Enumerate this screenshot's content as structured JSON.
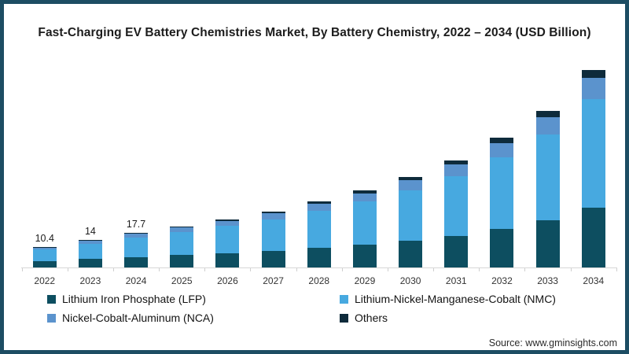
{
  "frame": {
    "border_color": "#1d4d63",
    "background_color": "#ffffff"
  },
  "title": "Fast-Charging EV Battery Chemistries Market, By Battery Chemistry, 2022 – 2034 (USD Billion)",
  "source": "Source: www.gminsights.com",
  "chart_data": {
    "type": "bar",
    "stacked": true,
    "orientation": "vertical",
    "title": "Fast-Charging EV Battery Chemistries Market, By Battery Chemistry, 2022 – 2034 (USD Billion)",
    "categories": [
      "2022",
      "2023",
      "2024",
      "2025",
      "2026",
      "2027",
      "2028",
      "2029",
      "2030",
      "2031",
      "2032",
      "2033",
      "2034"
    ],
    "series": [
      {
        "name": "Lithium Iron Phosphate (LFP)",
        "color": "#0d4e60",
        "values": [
          3.3,
          4.3,
          5.4,
          6.3,
          7.3,
          8.5,
          9.9,
          11.6,
          13.5,
          16.0,
          19.6,
          24.0,
          30.4
        ]
      },
      {
        "name": "Lithium-Nickel-Manganese-Cobalt (NMC)",
        "color": "#47a9e0",
        "values": [
          5.8,
          7.9,
          10.0,
          11.8,
          13.8,
          16.1,
          18.8,
          22.0,
          25.8,
          30.4,
          36.6,
          43.5,
          55.3
        ]
      },
      {
        "name": "Nickel-Cobalt-Aluminum (NCA)",
        "color": "#5b93cd",
        "values": [
          1.0,
          1.4,
          1.8,
          2.2,
          2.6,
          3.0,
          3.6,
          4.2,
          5.0,
          6.0,
          7.2,
          9.0,
          10.7
        ]
      },
      {
        "name": "Others",
        "color": "#0e2b3b",
        "values": [
          0.3,
          0.4,
          0.5,
          0.7,
          0.9,
          1.0,
          1.2,
          1.5,
          1.8,
          2.2,
          2.6,
          3.1,
          3.9
        ]
      }
    ],
    "totals": [
      10.4,
      14.0,
      17.7,
      21.0,
      24.6,
      28.6,
      33.5,
      39.3,
      46.1,
      54.6,
      66.0,
      79.6,
      100.3
    ],
    "total_labels": [
      "10.4",
      "14",
      "17.7",
      "",
      "",
      "",
      "",
      "",
      "",
      "",
      "",
      "",
      ""
    ],
    "ylabel": "",
    "xlabel": "",
    "y_axis_visible": false,
    "gridlines": false,
    "axis_color": "#d7d7d7",
    "legend_position": "bottom-left, two columns"
  }
}
